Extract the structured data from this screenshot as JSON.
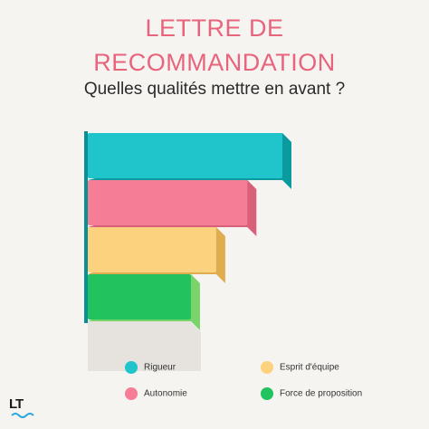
{
  "chart_data": {
    "type": "bar",
    "orientation": "horizontal",
    "title": "LETTRE DE RECOMMANDATION",
    "subtitle": "Quelles qualités mettre en avant ?",
    "categories": [
      "Rigueur",
      "Autonomie",
      "Esprit d'équipe",
      "Force de proposition"
    ],
    "values": [
      100,
      82,
      66,
      53
    ],
    "colors": [
      "#1fc5cb",
      "#f57d95",
      "#fdd27e",
      "#22c35e"
    ],
    "depth_colors": [
      "#0b9aa0",
      "#d9607a",
      "#e0ac50",
      "#7bd46a"
    ],
    "xlim": [
      0,
      100
    ],
    "legend": "bottom"
  },
  "logo": "LT"
}
